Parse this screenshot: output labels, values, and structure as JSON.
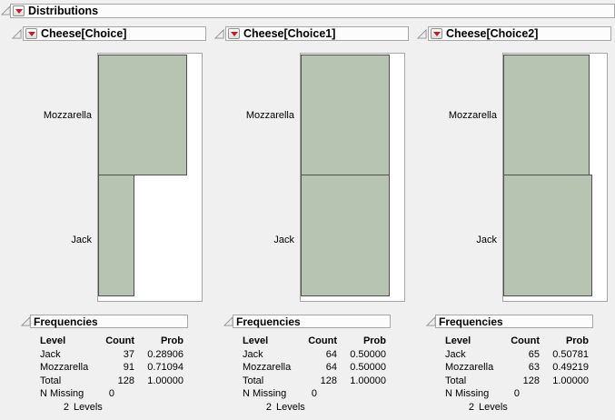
{
  "report": {
    "title": "Distributions"
  },
  "colors": {
    "background": "#f0f0f0",
    "header_bar_bg": "#fcfcfc",
    "header_bar_border": "#a6a6a6",
    "frame_border": "#a6a6a6",
    "frame_bg": "#ffffff",
    "bar_fill": "#b7c4b2",
    "bar_border": "#4f4f4f",
    "menu_button_red": "#c02020",
    "text": "#000000"
  },
  "icons": {
    "disclosure": "disclosure-triangle-open",
    "menu": "red-triangle-menu"
  },
  "panels": [
    {
      "title": "Cheese[Choice]",
      "chart_data": {
        "type": "bar",
        "orientation": "horizontal",
        "categories": [
          "Mozzarella",
          "Jack"
        ],
        "values": [
          91,
          37
        ],
        "total": 128,
        "axis_max_bar_fraction": 0.865,
        "grid": false,
        "legend": false
      },
      "frequencies": {
        "title": "Frequencies",
        "columns": [
          "Level",
          "Count",
          "Prob"
        ],
        "rows": [
          [
            "Jack",
            "37",
            "0.28906"
          ],
          [
            "Mozzarella",
            "91",
            "0.71094"
          ],
          [
            "Total",
            "128",
            "1.00000"
          ]
        ],
        "n_missing_label": "N Missing",
        "n_missing_value": "0",
        "levels_value": "2",
        "levels_label": "Levels"
      }
    },
    {
      "title": "Cheese[Choice1]",
      "chart_data": {
        "type": "bar",
        "orientation": "horizontal",
        "categories": [
          "Mozzarella",
          "Jack"
        ],
        "values": [
          64,
          64
        ],
        "total": 128,
        "axis_max_bar_fraction": 0.865,
        "grid": false,
        "legend": false
      },
      "frequencies": {
        "title": "Frequencies",
        "columns": [
          "Level",
          "Count",
          "Prob"
        ],
        "rows": [
          [
            "Jack",
            "64",
            "0.50000"
          ],
          [
            "Mozzarella",
            "64",
            "0.50000"
          ],
          [
            "Total",
            "128",
            "1.00000"
          ]
        ],
        "n_missing_label": "N Missing",
        "n_missing_value": "0",
        "levels_value": "2",
        "levels_label": "Levels"
      }
    },
    {
      "title": "Cheese[Choice2]",
      "chart_data": {
        "type": "bar",
        "orientation": "horizontal",
        "categories": [
          "Mozzarella",
          "Jack"
        ],
        "values": [
          63,
          65
        ],
        "total": 128,
        "axis_max_bar_fraction": 0.865,
        "grid": false,
        "legend": false
      },
      "frequencies": {
        "title": "Frequencies",
        "columns": [
          "Level",
          "Count",
          "Prob"
        ],
        "rows": [
          [
            "Jack",
            "65",
            "0.50781"
          ],
          [
            "Mozzarella",
            "63",
            "0.49219"
          ],
          [
            "Total",
            "128",
            "1.00000"
          ]
        ],
        "n_missing_label": "N Missing",
        "n_missing_value": "0",
        "levels_value": "2",
        "levels_label": "Levels"
      }
    }
  ]
}
